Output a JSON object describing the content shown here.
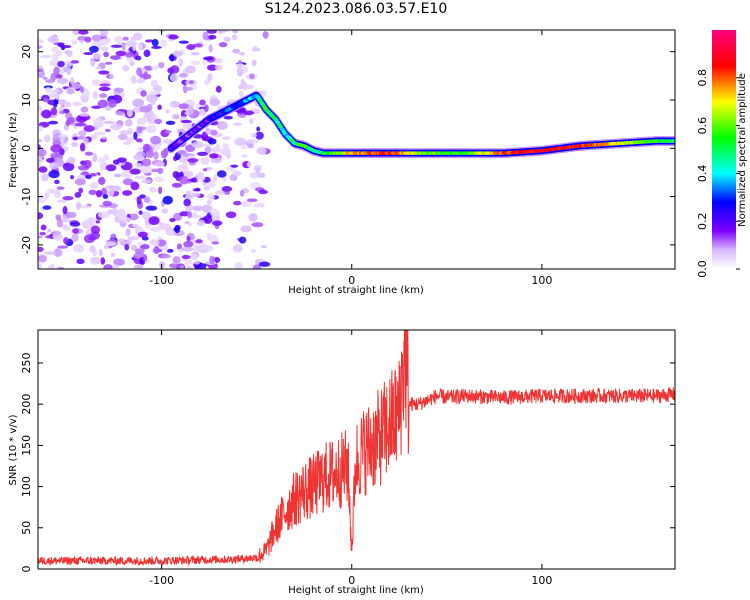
{
  "title": "S124.2023.086.03.57.E10",
  "chart_data": [
    {
      "type": "heatmap",
      "xlabel": "Height of straight line (km)",
      "ylabel": "Frequency (Hz)",
      "xlim": [
        -165,
        170
      ],
      "ylim": [
        -25,
        24.5
      ],
      "xticks": [
        -100,
        0,
        100
      ],
      "yticks": [
        20,
        10,
        0,
        -10,
        -20
      ],
      "colorbar": {
        "label": "Normalized spectral amplitude",
        "range": [
          0,
          1
        ],
        "ticks": [
          0.0,
          0.2,
          0.4,
          0.6,
          0.8
        ],
        "tick_labels": [
          "0.0",
          "0.2",
          "0.4",
          "0.6",
          "0.8"
        ]
      },
      "noise_region_x": [
        -165,
        -55
      ],
      "signal_ridge": {
        "x": [
          -95,
          -85,
          -75,
          -65,
          -55,
          -50,
          -45,
          -40,
          -35,
          -30,
          -25,
          -20,
          -15,
          -10,
          -5,
          0,
          20,
          40,
          60,
          80,
          100,
          120,
          140,
          160,
          170
        ],
        "freq": [
          0,
          3,
          6,
          8,
          10,
          11,
          8,
          6,
          3,
          1,
          0.5,
          -0.5,
          -1,
          -1,
          -1,
          -1,
          -1,
          -1,
          -1,
          -1,
          -0.5,
          0.5,
          1,
          1.5,
          1.5
        ],
        "amplitude": [
          0.2,
          0.15,
          0.2,
          0.3,
          0.35,
          0.4,
          0.55,
          0.5,
          0.4,
          0.5,
          0.6,
          0.4,
          0.5,
          0.6,
          0.65,
          0.75,
          0.85,
          0.6,
          0.55,
          0.8,
          0.9,
          0.85,
          0.7,
          0.55,
          0.5
        ]
      }
    },
    {
      "type": "line",
      "xlabel": "Height of straight line (km)",
      "ylabel": "SNR (10 * v/v)",
      "xlim": [
        -165,
        170
      ],
      "ylim": [
        0,
        290
      ],
      "xticks": [
        -100,
        0,
        100
      ],
      "yticks": [
        0,
        50,
        100,
        150,
        200,
        250
      ],
      "color": "#ee3333",
      "series": [
        {
          "x": [
            -165,
            -140,
            -120,
            -100,
            -80,
            -60,
            -50,
            -45,
            -40,
            -35,
            -30,
            -25,
            -20,
            -15,
            -10,
            -5,
            -2,
            0,
            2,
            5,
            10,
            15,
            20,
            25,
            28,
            30,
            32,
            35,
            40,
            45,
            50,
            60,
            80,
            100,
            120,
            140,
            160,
            170
          ],
          "y": [
            10,
            10,
            10,
            10,
            11,
            12,
            14,
            22,
            50,
            70,
            85,
            95,
            100,
            110,
            115,
            120,
            125,
            20,
            130,
            140,
            150,
            160,
            175,
            190,
            270,
            200,
            200,
            200,
            205,
            210,
            208,
            210,
            208,
            210,
            210,
            210,
            210,
            212
          ]
        }
      ]
    }
  ]
}
